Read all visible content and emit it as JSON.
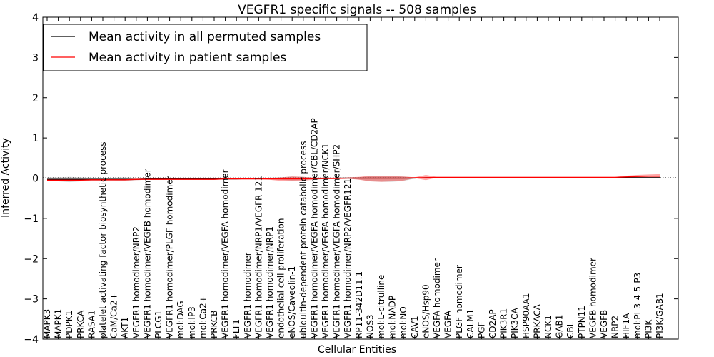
{
  "chart_data": {
    "type": "line",
    "title": "VEGFR1 specific signals -- 508 samples",
    "xlabel": "Cellular Entities",
    "ylabel": "Inferred Activity",
    "ylim": [
      -4,
      4
    ],
    "yticks": [
      "−4",
      "−3",
      "−2",
      "−1",
      "0",
      "1",
      "2",
      "3",
      "4"
    ],
    "legend_position": "top-left",
    "categories": [
      "MAPK3",
      "MAPK1",
      "PDPK1",
      "PRKCA",
      "RASA1",
      "platelet activating factor biosynthetic process",
      "CaM/Ca2+",
      "AKT1",
      "VEGFR1 homodimer/NRP2",
      "VEGFR1 homodimer/VEGFB homodimer",
      "PLCG1",
      "VEGFR1 homodimer/PLGF homodimer",
      "mol:DAG",
      "mol:IP3",
      "mol:Ca2+",
      "PRKCB",
      "VEGFR1 homodimer/VEGFA homodimer",
      "FLT1",
      "VEGFR1 homodimer",
      "VEGFR1 homodimer/NRP1/VEGFR 121",
      "VEGFR1 homodimer/NRP1",
      "endothelial cell proliferation",
      "eNOS/Caveolin-1",
      "ubiquitin-dependent protein catabolic process",
      "VEGFR1 homodimer/VEGFA homodimer/CBL/CD2AP",
      "VEGFR1 homodimer/VEGFA homodimer/NCK1",
      "VEGFR1 homodimer/VEGFA homodimer/SHP2",
      "VEGFR1 homodimer/NRP2/VEGFR121",
      "RP11-342D11.1",
      "NOS3",
      "mol:L-citrulline",
      "mol:NADP",
      "mol:NO",
      "CAV1",
      "eNOS/Hsp90",
      "VEGFA homodimer",
      "VEGFA",
      "PLGF homodimer",
      "CALM1",
      "PGF",
      "CD2AP",
      "PIK3R1",
      "PIK3CA",
      "HSP90AA1",
      "PRKACA",
      "NCK1",
      "GAB1",
      "CBL",
      "PTPN11",
      "VEGFB homodimer",
      "VEGFB",
      "NRP2",
      "HIF1A",
      "mol:PI-3-4-5-P3",
      "PI3K",
      "PI3K/GAB1"
    ],
    "series": [
      {
        "name": "Mean activity in all permuted samples",
        "color": "#000000",
        "values": [
          -0.03,
          -0.03,
          -0.03,
          -0.03,
          -0.03,
          -0.03,
          -0.03,
          -0.03,
          -0.03,
          -0.02,
          -0.02,
          -0.02,
          -0.02,
          -0.02,
          -0.02,
          -0.02,
          -0.02,
          -0.02,
          -0.01,
          -0.01,
          -0.01,
          -0.01,
          -0.01,
          -0.01,
          -0.01,
          -0.01,
          0.0,
          0.0,
          0.0,
          0.0,
          0.0,
          0.0,
          0.0,
          0.0,
          0.01,
          0.01,
          0.01,
          0.01,
          0.01,
          0.01,
          0.01,
          0.01,
          0.01,
          0.01,
          0.01,
          0.01,
          0.01,
          0.01,
          0.01,
          0.01,
          0.01,
          0.01,
          0.01,
          0.01,
          0.01,
          0.01
        ],
        "band_low": [
          -0.08,
          -0.08,
          -0.1,
          -0.08,
          -0.07,
          -0.06,
          -0.06,
          -0.08,
          -0.05,
          -0.04,
          -0.04,
          -0.04,
          -0.04,
          -0.04,
          -0.04,
          -0.04,
          -0.03,
          -0.03,
          -0.02,
          -0.02,
          -0.03,
          -0.04,
          -0.06,
          -0.05,
          -0.03,
          -0.03,
          -0.02,
          -0.01,
          -0.03,
          -0.08,
          -0.09,
          -0.09,
          -0.07,
          -0.01,
          0.0,
          0.0,
          0.0,
          0.0,
          0.0,
          0.0,
          0.0,
          0.0,
          0.0,
          0.0,
          0.0,
          0.0,
          0.0,
          0.0,
          0.0,
          0.0,
          0.0,
          0.0,
          0.0,
          0.0,
          0.0,
          0.0
        ],
        "band_high": [
          0.02,
          0.02,
          0.03,
          0.02,
          0.01,
          0.0,
          0.01,
          0.02,
          0.0,
          -0.01,
          -0.01,
          -0.01,
          -0.01,
          -0.01,
          -0.01,
          -0.01,
          -0.01,
          -0.01,
          0.0,
          0.0,
          0.01,
          0.02,
          0.04,
          0.03,
          0.01,
          0.01,
          0.01,
          0.01,
          0.02,
          0.05,
          0.06,
          0.06,
          0.04,
          0.02,
          0.02,
          0.02,
          0.02,
          0.02,
          0.02,
          0.02,
          0.02,
          0.02,
          0.02,
          0.02,
          0.02,
          0.02,
          0.02,
          0.02,
          0.02,
          0.02,
          0.02,
          0.02,
          0.02,
          0.02,
          0.02,
          0.02
        ]
      },
      {
        "name": "Mean activity in patient samples",
        "color": "#ff0000",
        "values": [
          -0.05,
          -0.05,
          -0.05,
          -0.05,
          -0.04,
          -0.04,
          -0.04,
          -0.04,
          -0.03,
          -0.03,
          -0.03,
          -0.03,
          -0.03,
          -0.03,
          -0.03,
          -0.03,
          -0.02,
          -0.02,
          -0.02,
          -0.02,
          -0.02,
          -0.02,
          -0.02,
          -0.02,
          -0.01,
          -0.01,
          -0.01,
          0.0,
          0.0,
          0.0,
          0.0,
          0.0,
          0.0,
          0.01,
          0.01,
          0.02,
          0.02,
          0.02,
          0.02,
          0.02,
          0.02,
          0.02,
          0.02,
          0.02,
          0.02,
          0.02,
          0.02,
          0.02,
          0.02,
          0.02,
          0.02,
          0.02,
          0.03,
          0.04,
          0.05,
          0.05
        ],
        "band_low": [
          -0.08,
          -0.07,
          -0.08,
          -0.07,
          -0.06,
          -0.06,
          -0.06,
          -0.06,
          -0.05,
          -0.04,
          -0.04,
          -0.04,
          -0.04,
          -0.04,
          -0.04,
          -0.04,
          -0.03,
          -0.03,
          -0.03,
          -0.03,
          -0.04,
          -0.07,
          -0.08,
          -0.06,
          -0.04,
          -0.02,
          -0.02,
          -0.01,
          -0.04,
          -0.08,
          -0.09,
          -0.08,
          -0.06,
          0.0,
          -0.05,
          0.01,
          0.01,
          0.01,
          0.01,
          0.01,
          0.01,
          0.01,
          0.01,
          0.01,
          0.01,
          0.01,
          0.01,
          0.01,
          0.01,
          0.01,
          0.01,
          0.01,
          0.0,
          0.0,
          0.0,
          0.0
        ],
        "band_high": [
          -0.03,
          -0.03,
          -0.03,
          -0.03,
          -0.02,
          -0.02,
          -0.02,
          -0.02,
          -0.02,
          -0.02,
          -0.02,
          -0.02,
          -0.02,
          -0.02,
          -0.02,
          -0.02,
          -0.01,
          -0.01,
          -0.01,
          -0.01,
          0.0,
          0.02,
          0.04,
          0.03,
          0.01,
          0.01,
          0.01,
          0.02,
          0.03,
          0.06,
          0.06,
          0.05,
          0.04,
          0.02,
          0.08,
          0.03,
          0.03,
          0.03,
          0.03,
          0.03,
          0.03,
          0.03,
          0.03,
          0.03,
          0.03,
          0.03,
          0.03,
          0.03,
          0.03,
          0.03,
          0.03,
          0.03,
          0.06,
          0.08,
          0.09,
          0.1
        ]
      }
    ],
    "reference_line": {
      "y": 0,
      "style": "dotted"
    }
  }
}
